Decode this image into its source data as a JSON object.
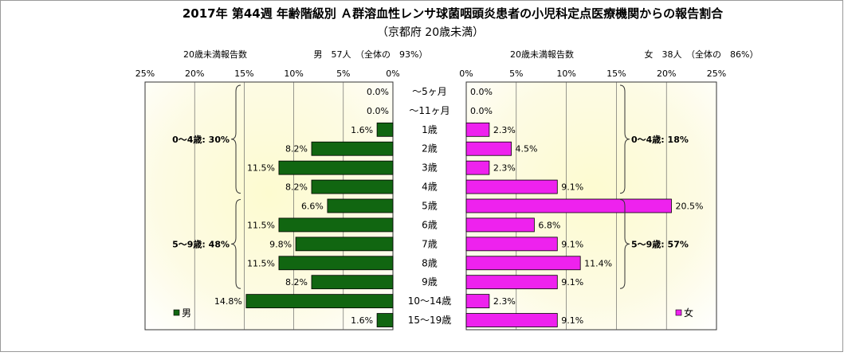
{
  "title": "2017年 第44週 年齢階級別 Ａ群溶血性レンサ球菌咽頭炎患者の小児科定点医療機関からの報告割合",
  "subtitle": "（京都府 20歳未満）",
  "chart_data": [
    {
      "type": "bar",
      "orientation": "horizontal",
      "direction": "right-to-left",
      "name_label": "男",
      "header_label": "20歳未満報告数",
      "header_stats": "男　57人　（全体の　93%）",
      "legend_label": "男",
      "legend_position": "bottom-left",
      "color": "#116611",
      "xlim": [
        0,
        25
      ],
      "ticks": [
        "25%",
        "20%",
        "15%",
        "10%",
        "5%",
        "0%"
      ],
      "categories": [
        "～5ヶ月",
        "～11ヶ月",
        "1歳",
        "2歳",
        "3歳",
        "4歳",
        "5歳",
        "6歳",
        "7歳",
        "8歳",
        "9歳",
        "10～14歳",
        "15～19歳"
      ],
      "values": [
        0.0,
        0.0,
        1.6,
        8.2,
        11.5,
        8.2,
        6.6,
        11.5,
        9.8,
        11.5,
        8.2,
        14.8,
        1.6
      ],
      "data_labels": [
        "0.0%",
        "0.0%",
        "1.6%",
        "8.2%",
        "11.5%",
        "8.2%",
        "6.6%",
        "11.5%",
        "9.8%",
        "11.5%",
        "8.2%",
        "14.8%",
        "1.6%"
      ],
      "group_labels": [
        "0～4歳: 30%",
        "5～9歳: 48%"
      ],
      "grid": true
    },
    {
      "type": "bar",
      "orientation": "horizontal",
      "direction": "left-to-right",
      "name_label": "女",
      "header_label": "20歳未満報告数",
      "header_stats": "女　38人　（全体の　86%）",
      "legend_label": "女",
      "legend_position": "bottom-right",
      "color": "#ee22ee",
      "xlim": [
        0,
        25
      ],
      "ticks": [
        "0%",
        "5%",
        "10%",
        "15%",
        "20%",
        "25%"
      ],
      "categories": [
        "～5ヶ月",
        "～11ヶ月",
        "1歳",
        "2歳",
        "3歳",
        "4歳",
        "5歳",
        "6歳",
        "7歳",
        "8歳",
        "9歳",
        "10～14歳",
        "15～19歳"
      ],
      "values": [
        0.0,
        0.0,
        2.3,
        4.5,
        2.3,
        9.1,
        20.5,
        6.8,
        9.1,
        11.4,
        9.1,
        2.3,
        9.1
      ],
      "data_labels": [
        "0.0%",
        "0.0%",
        "2.3%",
        "4.5%",
        "2.3%",
        "9.1%",
        "20.5%",
        "6.8%",
        "9.1%",
        "11.4%",
        "9.1%",
        "2.3%",
        "9.1%"
      ],
      "group_labels": [
        "0～4歳: 18%",
        "5～9歳: 57%"
      ],
      "grid": true
    }
  ]
}
